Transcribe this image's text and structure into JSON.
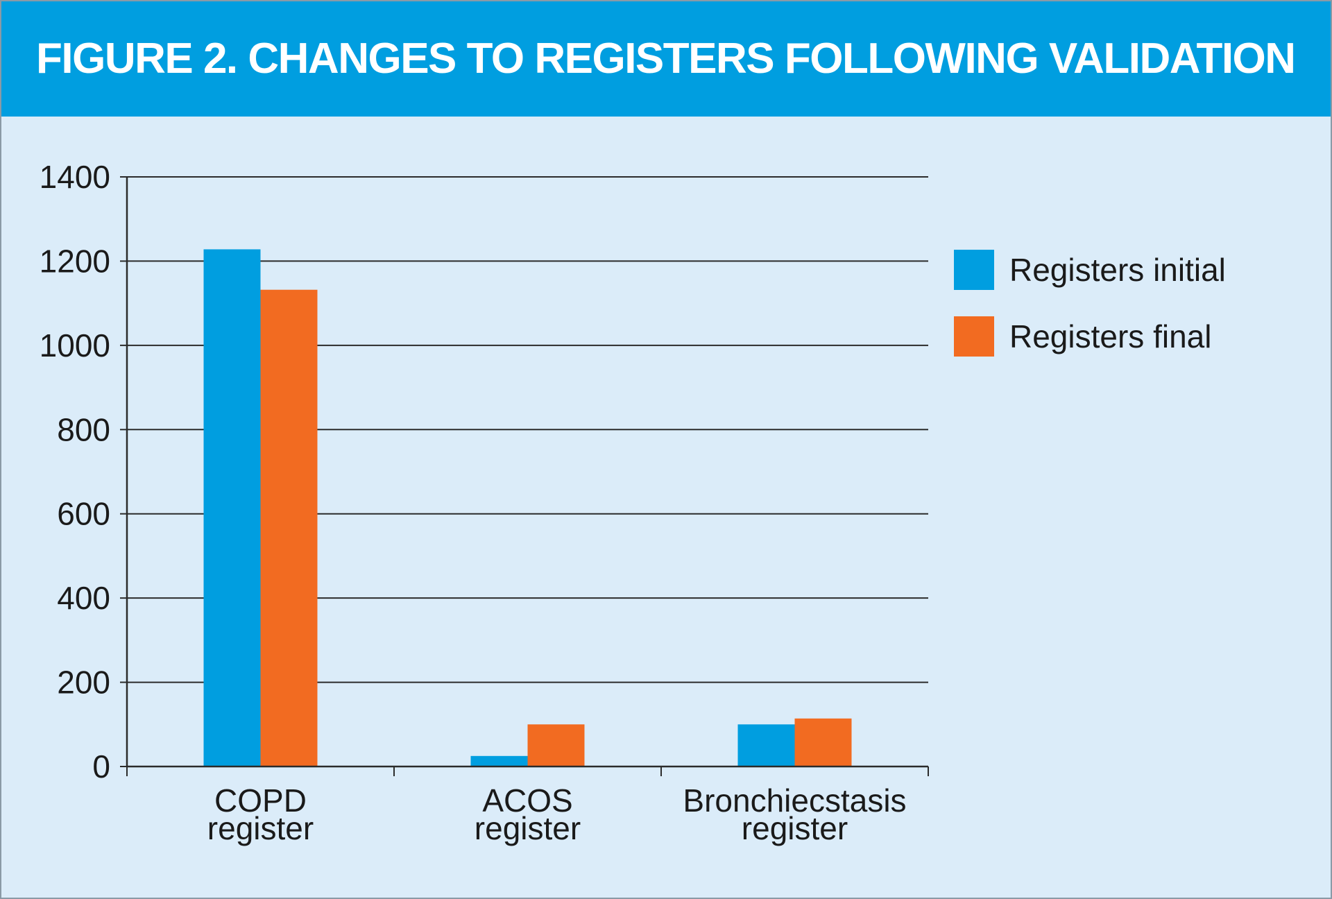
{
  "figure": {
    "title": "FIGURE 2. CHANGES TO REGISTERS FOLLOWING VALIDATION"
  },
  "colors": {
    "header_bg": "#009ee0",
    "panel_bg": "#dbecf9",
    "series_initial": "#009ee0",
    "series_final": "#f26b21"
  },
  "chart_data": {
    "type": "bar",
    "title": "FIGURE 2. CHANGES TO REGISTERS FOLLOWING VALIDATION",
    "categories": [
      [
        "COPD",
        "register"
      ],
      [
        "ACOS",
        "register"
      ],
      [
        "Bronchiecstasis",
        "register"
      ]
    ],
    "series": [
      {
        "name": "Registers initial",
        "color": "#009ee0",
        "values": [
          1228,
          25,
          100
        ]
      },
      {
        "name": "Registers final",
        "color": "#f26b21",
        "values": [
          1132,
          100,
          114
        ]
      }
    ],
    "ylim": [
      0,
      1400
    ],
    "yticks": [
      0,
      200,
      400,
      600,
      800,
      1000,
      1200,
      1400
    ],
    "grid": true,
    "legend": "right"
  }
}
